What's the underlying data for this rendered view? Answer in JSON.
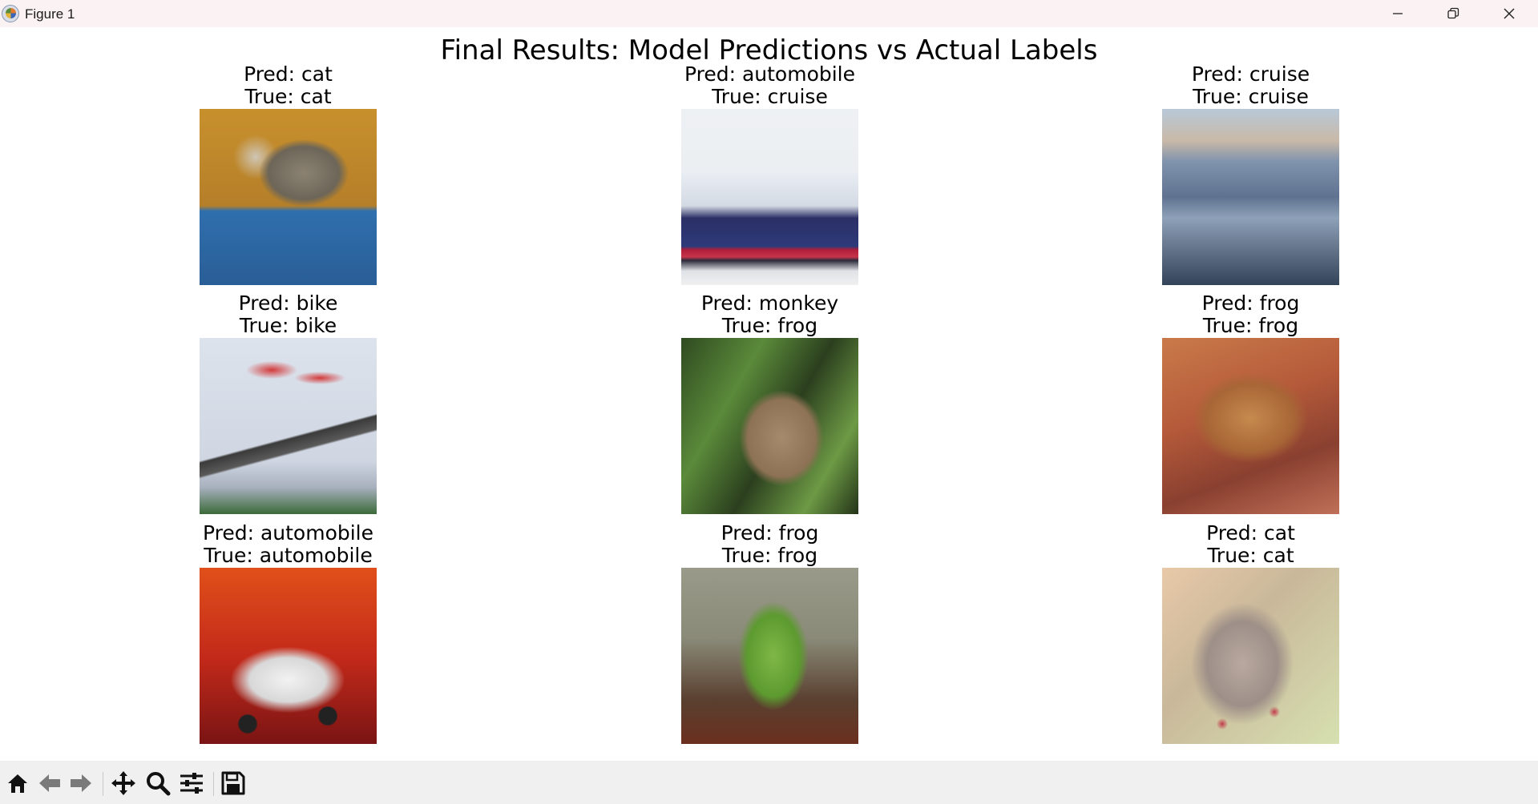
{
  "window": {
    "title": "Figure 1"
  },
  "figure": {
    "title": "Final Results: Model Predictions vs Actual Labels",
    "cells": [
      {
        "pred": "Pred: cat",
        "true": "True: cat"
      },
      {
        "pred": "Pred: automobile",
        "true": "True: cruise"
      },
      {
        "pred": "Pred: cruise",
        "true": "True: cruise"
      },
      {
        "pred": "Pred: bike",
        "true": "True: bike"
      },
      {
        "pred": "Pred: monkey",
        "true": "True: frog"
      },
      {
        "pred": "Pred: frog",
        "true": "True: frog"
      },
      {
        "pred": "Pred: automobile",
        "true": "True: automobile"
      },
      {
        "pred": "Pred: frog",
        "true": "True: frog"
      },
      {
        "pred": "Pred: cat",
        "true": "True: cat"
      }
    ]
  },
  "toolbar": {
    "icons": [
      "home-icon",
      "back-arrow-icon",
      "forward-arrow-icon",
      "pan-icon",
      "zoom-icon",
      "configure-subplots-icon",
      "save-icon"
    ]
  }
}
